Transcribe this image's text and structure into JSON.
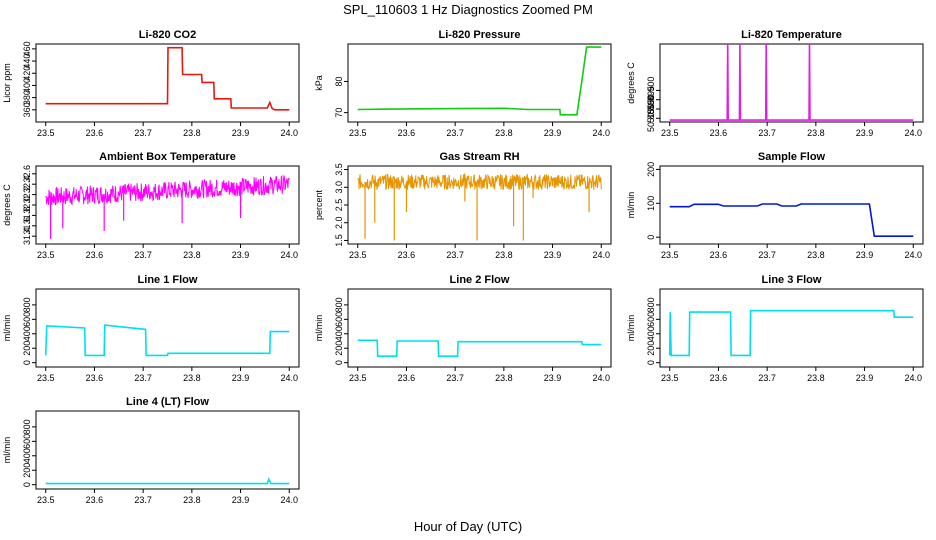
{
  "title": "SPL_110603  1 Hz Diagnostics Zoomed PM",
  "xlabel": "Hour of Day (UTC)",
  "x_ticks": [
    "23.5",
    "23.6",
    "23.7",
    "23.8",
    "23.9",
    "24.0"
  ],
  "chart_data": [
    {
      "type": "line",
      "title": "Li-820 CO2",
      "ylabel": "Licor ppm",
      "color": "#e8180f",
      "xlim": [
        23.48,
        24.02
      ],
      "ylim": [
        340,
        468
      ],
      "yticks": [
        "360",
        "380",
        "400",
        "420",
        "440",
        "460"
      ],
      "x": [
        23.5,
        23.75,
        23.751,
        23.78,
        23.781,
        23.82,
        23.821,
        23.845,
        23.846,
        23.88,
        23.881,
        23.955,
        23.96,
        23.965,
        23.97,
        24.0
      ],
      "y": [
        370,
        370,
        462,
        462,
        418,
        418,
        405,
        405,
        378,
        378,
        363,
        363,
        372,
        362,
        360,
        360
      ]
    },
    {
      "type": "line",
      "title": "Li-820 Pressure",
      "ylabel": "kPa",
      "color": "#11cc11",
      "xlim": [
        23.48,
        24.02
      ],
      "ylim": [
        67,
        92
      ],
      "yticks": [
        "70",
        "80"
      ],
      "x": [
        23.5,
        23.6,
        23.7,
        23.8,
        23.85,
        23.915,
        23.916,
        23.95,
        23.96,
        23.97,
        24.0
      ],
      "y": [
        71,
        71.2,
        71.3,
        71.4,
        71,
        71,
        69.3,
        69.3,
        80,
        91,
        91
      ]
    },
    {
      "type": "line",
      "title": "Li-820 Temperature",
      "ylabel": "degrees C",
      "color": "#e020e0",
      "xlim": [
        23.48,
        24.02
      ],
      "ylim": [
        50.883,
        50.925
      ],
      "yticks": [
        "50.885",
        "50.890",
        "50.895",
        "50.900"
      ],
      "x": [
        23.5,
        23.618,
        23.619,
        23.62,
        23.643,
        23.644,
        23.645,
        23.697,
        23.698,
        23.699,
        23.786,
        23.787,
        23.788,
        24.0
      ],
      "y": [
        50.884,
        50.884,
        50.925,
        50.884,
        50.884,
        50.925,
        50.884,
        50.884,
        50.925,
        50.884,
        50.884,
        50.925,
        50.884,
        50.884
      ]
    },
    {
      "type": "line",
      "title": "Ambient Box Temperature",
      "ylabel": "degrees C",
      "color": "#ff00ff",
      "xlim": [
        23.48,
        24.02
      ],
      "ylim": [
        31.25,
        32.75
      ],
      "yticks": [
        "31.4",
        "31.6",
        "31.8",
        "32.0",
        "32.2",
        "32.4",
        "32.6"
      ],
      "noise": {
        "x0": 23.5,
        "x1": 24.0,
        "y0": 32.15,
        "y1": 32.4,
        "amp": 0.18
      },
      "spikes": [
        [
          23.51,
          31.35
        ],
        [
          23.535,
          31.55
        ],
        [
          23.62,
          31.5
        ],
        [
          23.66,
          31.7
        ],
        [
          23.78,
          31.65
        ],
        [
          23.9,
          31.75
        ]
      ]
    },
    {
      "type": "line",
      "title": "Gas Stream RH",
      "ylabel": "percent",
      "color": "#e69500",
      "xlim": [
        23.48,
        24.02
      ],
      "ylim": [
        1.4,
        3.6
      ],
      "yticks": [
        "1.5",
        "2.0",
        "2.5",
        "3.0",
        "3.5"
      ],
      "noise": {
        "x0": 23.5,
        "x1": 24.0,
        "y0": 3.15,
        "y1": 3.15,
        "amp": 0.22
      },
      "spikes": [
        [
          23.515,
          1.55
        ],
        [
          23.535,
          2.0
        ],
        [
          23.575,
          1.5
        ],
        [
          23.6,
          2.3
        ],
        [
          23.72,
          2.6
        ],
        [
          23.745,
          1.5
        ],
        [
          23.82,
          1.9
        ],
        [
          23.84,
          1.5
        ],
        [
          23.86,
          2.7
        ],
        [
          23.975,
          2.3
        ]
      ]
    },
    {
      "type": "line",
      "title": "Sample Flow",
      "ylabel": "ml/min",
      "color": "#0018d0",
      "xlim": [
        23.48,
        24.02
      ],
      "ylim": [
        -20,
        210
      ],
      "yticks": [
        "0",
        "100",
        "200"
      ],
      "x": [
        23.5,
        23.54,
        23.55,
        23.6,
        23.61,
        23.68,
        23.69,
        23.72,
        23.73,
        23.76,
        23.77,
        23.91,
        23.92,
        24.0
      ],
      "y": [
        90,
        90,
        97,
        97,
        92,
        92,
        98,
        98,
        92,
        92,
        98,
        98,
        3,
        3
      ]
    },
    {
      "type": "line",
      "title": "Line 1 Flow",
      "ylabel": "ml/min",
      "color": "#00e0e8",
      "xlim": [
        23.48,
        24.02
      ],
      "ylim": [
        -60,
        1020
      ],
      "yticks": [
        "0",
        "200",
        "400",
        "600",
        "800"
      ],
      "x": [
        23.5,
        23.502,
        23.58,
        23.581,
        23.62,
        23.621,
        23.705,
        23.706,
        23.75,
        23.751,
        23.96,
        23.961,
        24.0
      ],
      "y": [
        100,
        510,
        480,
        100,
        100,
        520,
        460,
        100,
        100,
        130,
        130,
        430,
        430
      ]
    },
    {
      "type": "line",
      "title": "Line 2 Flow",
      "ylabel": "ml/min",
      "color": "#00e0e8",
      "xlim": [
        23.48,
        24.02
      ],
      "ylim": [
        -60,
        1020
      ],
      "yticks": [
        "0",
        "200",
        "400",
        "600",
        "800"
      ],
      "x": [
        23.5,
        23.54,
        23.541,
        23.58,
        23.581,
        23.665,
        23.666,
        23.705,
        23.706,
        23.96,
        23.961,
        24.0
      ],
      "y": [
        310,
        310,
        90,
        90,
        300,
        300,
        90,
        90,
        290,
        290,
        250,
        250
      ]
    },
    {
      "type": "line",
      "title": "Line 3 Flow",
      "ylabel": "ml/min",
      "color": "#00e0e8",
      "xlim": [
        23.48,
        24.02
      ],
      "ylim": [
        -60,
        1020
      ],
      "yticks": [
        "0",
        "200",
        "400",
        "600",
        "800"
      ],
      "x": [
        23.5,
        23.501,
        23.503,
        23.54,
        23.541,
        23.625,
        23.626,
        23.665,
        23.666,
        23.96,
        23.961,
        24.0
      ],
      "y": [
        100,
        700,
        100,
        100,
        700,
        700,
        100,
        100,
        720,
        720,
        630,
        630
      ]
    },
    {
      "type": "line",
      "title": "Line 4 (LT) Flow",
      "ylabel": "ml/min",
      "color": "#00e0e8",
      "xlim": [
        23.48,
        24.02
      ],
      "ylim": [
        -60,
        1020
      ],
      "yticks": [
        "0",
        "200",
        "400",
        "600",
        "800"
      ],
      "x": [
        23.5,
        23.955,
        23.958,
        23.962,
        24.0
      ],
      "y": [
        15,
        15,
        75,
        15,
        15
      ]
    }
  ]
}
